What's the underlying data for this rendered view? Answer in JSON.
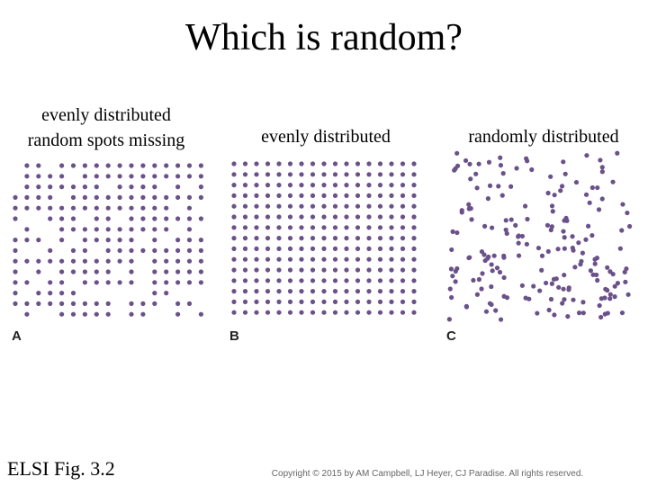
{
  "header": {
    "title": "Which is random?"
  },
  "panels": [
    {
      "caption_lines": [
        "evenly distributed",
        "random spots missing"
      ],
      "letter": "A"
    },
    {
      "caption_lines": [
        "evenly distributed"
      ],
      "letter": "B"
    },
    {
      "caption_lines": [
        "randomly distributed"
      ],
      "letter": "C"
    }
  ],
  "footer": {
    "figure": "ELSI Fig. 3.2",
    "copyright": "Copyright © 2015 by AM Campbell, LJ Heyer, CJ Paradise. All rights reserved."
  }
}
